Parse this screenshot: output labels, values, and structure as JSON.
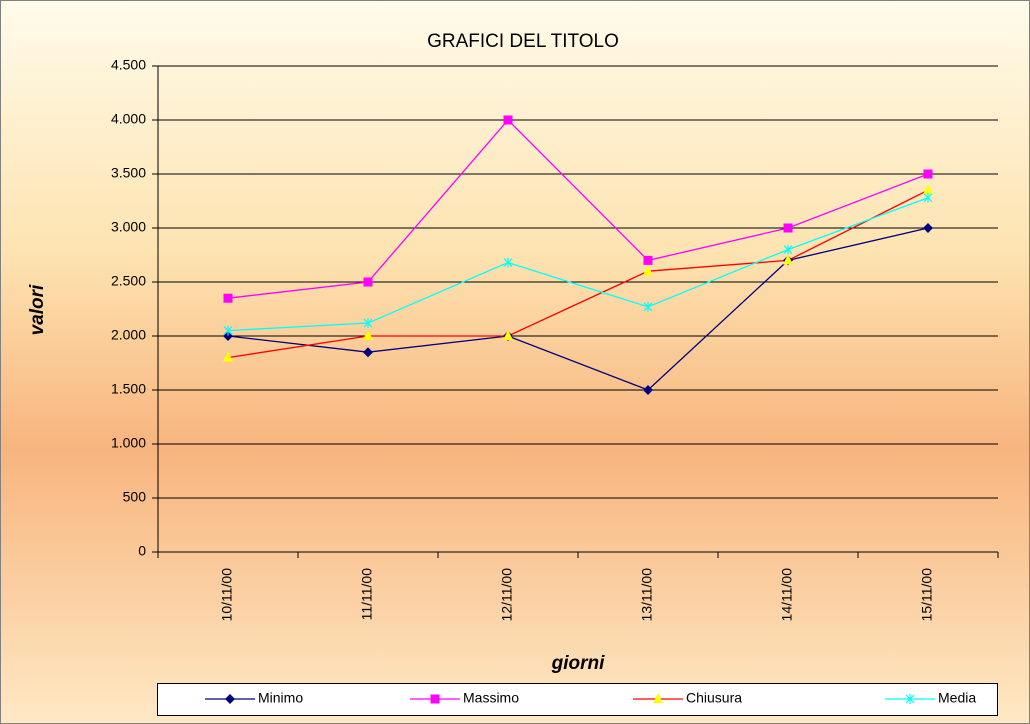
{
  "chart_data": {
    "type": "line",
    "title": "GRAFICI DEL TITOLO",
    "x_label": "giorni",
    "y_label": "valori",
    "categories": [
      "10/11/00",
      "11/11/00",
      "12/11/00",
      "13/11/00",
      "14/11/00",
      "15/11/00"
    ],
    "series": [
      {
        "name": "Minimo",
        "color": "#000080",
        "marker": "diamond",
        "marker_color": "#000080",
        "values": [
          2000,
          1850,
          2000,
          1500,
          2700,
          3000
        ]
      },
      {
        "name": "Massimo",
        "color": "#ff00ff",
        "marker": "square",
        "marker_color": "#ff00ff",
        "values": [
          2350,
          2500,
          4000,
          2700,
          3000,
          3500
        ]
      },
      {
        "name": "Chiusura",
        "color": "#ff0000",
        "marker": "triangle",
        "marker_color": "#ffff00",
        "values": [
          1800,
          2000,
          2000,
          2600,
          2700,
          3350
        ]
      },
      {
        "name": "Media",
        "color": "#00ffff",
        "marker": "star",
        "marker_color": "#00ffff",
        "values": [
          2050,
          2120,
          2680,
          2270,
          2800,
          3280
        ]
      }
    ],
    "ylim": [
      0,
      4500
    ],
    "yticks": [
      0,
      500,
      {
        "value": 1000,
        "label": "1.000"
      },
      {
        "value": 1500,
        "label": "1.500"
      },
      {
        "value": 2000,
        "label": "2.000"
      },
      {
        "value": 2500,
        "label": "2.500"
      },
      {
        "value": 3000,
        "label": "3.000"
      },
      {
        "value": 3500,
        "label": "3.500"
      },
      {
        "value": 4000,
        "label": "4.000"
      },
      {
        "value": 4500,
        "label": "4.500"
      }
    ],
    "grid": true,
    "legend": "bottom"
  }
}
